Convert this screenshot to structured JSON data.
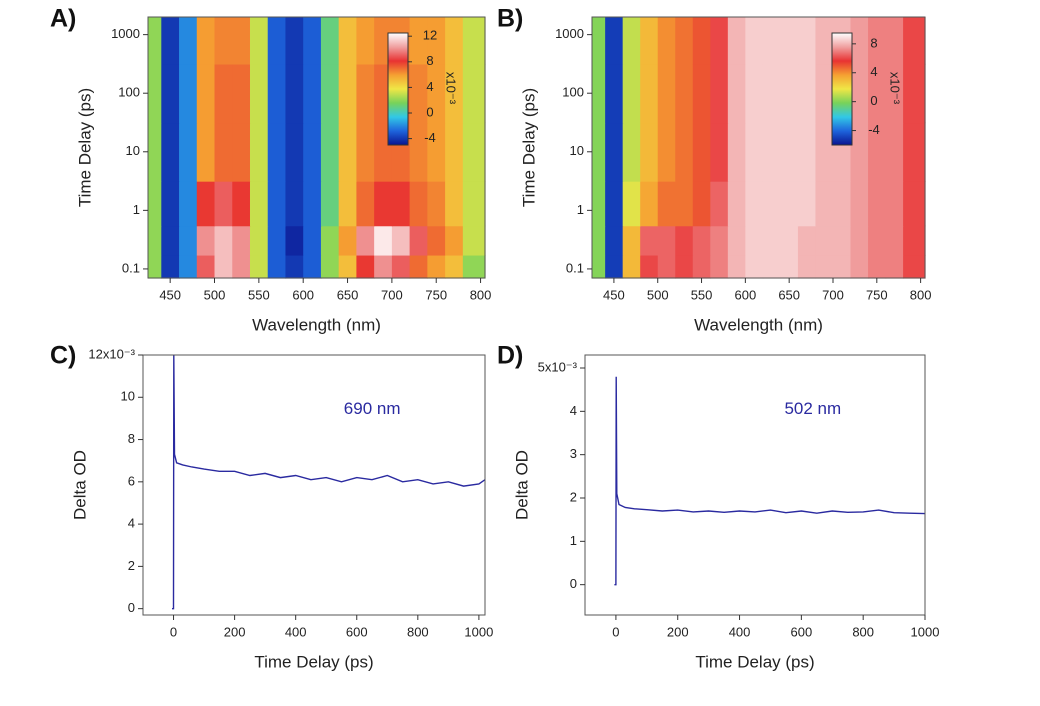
{
  "chart_data": [
    {
      "type": "heatmap",
      "label": "A)",
      "xlabel": "Wavelength (nm)",
      "ylabel": "Time Delay (ps)",
      "x": [
        430,
        450,
        470,
        490,
        510,
        530,
        550,
        570,
        590,
        610,
        630,
        650,
        670,
        690,
        710,
        730,
        750,
        770,
        790
      ],
      "y": [
        0.1,
        0.3,
        1,
        10,
        100,
        1000
      ],
      "z": [
        [
          2,
          -4,
          -2,
          9,
          11,
          10,
          3,
          -3,
          -4,
          -3,
          2,
          5,
          8,
          10,
          9,
          7,
          6,
          5,
          2
        ],
        [
          2,
          -4,
          -2,
          10,
          11,
          10,
          3,
          -3,
          -4.5,
          -3,
          2,
          6,
          10,
          12,
          11,
          9,
          7,
          6,
          3
        ],
        [
          2,
          -4,
          -2,
          8,
          9,
          8,
          3,
          -3,
          -4,
          -3,
          1,
          5,
          7,
          8,
          8,
          7,
          6.5,
          5,
          3
        ],
        [
          2,
          -4,
          -2,
          6,
          7,
          7,
          3,
          -3,
          -4,
          -3,
          1,
          5,
          6.5,
          7,
          7,
          6.5,
          6,
          5,
          3
        ],
        [
          2,
          -4,
          -2,
          6,
          7,
          7,
          3,
          -3,
          -4,
          -3,
          1,
          5,
          6.5,
          7,
          7,
          6.5,
          6,
          5,
          3
        ],
        [
          2,
          -4,
          -2,
          6,
          6.5,
          6.5,
          3,
          -3,
          -4,
          -3,
          1,
          5,
          6,
          6.5,
          6.5,
          6,
          6,
          5,
          3
        ]
      ],
      "xlim": [
        425,
        805
      ],
      "xticks": [
        450,
        500,
        550,
        600,
        650,
        700,
        750,
        800
      ],
      "ylim": [
        0.07,
        2000
      ],
      "ylog": true,
      "yticks": [
        0.1,
        1,
        10,
        100,
        1000
      ],
      "clim": [
        -5,
        12.5
      ],
      "cticks": [
        -4,
        0,
        4,
        8,
        12
      ],
      "colorbar_label": "x10⁻³",
      "colorscale": [
        "#0a1490",
        "#1e64dc",
        "#32c8e6",
        "#78d25a",
        "#f0e646",
        "#f5a032",
        "#e83232",
        "#f0a0a0",
        "#ffffff"
      ]
    },
    {
      "type": "heatmap",
      "label": "B)",
      "xlabel": "Wavelength (nm)",
      "ylabel": "Time Delay (ps)",
      "x": [
        430,
        450,
        470,
        490,
        510,
        530,
        550,
        570,
        590,
        610,
        630,
        650,
        670,
        690,
        710,
        730,
        750,
        770,
        790
      ],
      "y": [
        0.1,
        0.3,
        1,
        10,
        100,
        1000
      ],
      "z": [
        [
          0,
          -5,
          3,
          6,
          6.5,
          6,
          6.5,
          7,
          8,
          8.5,
          8.5,
          8.5,
          8,
          8,
          8,
          7.5,
          7,
          7,
          6
        ],
        [
          0,
          -5,
          3,
          6.5,
          6.5,
          6,
          6.5,
          7,
          8,
          8.5,
          8.5,
          8.5,
          8,
          8,
          8,
          7.5,
          7,
          7,
          6
        ],
        [
          0,
          -5,
          1.5,
          3.5,
          4.5,
          4.5,
          5,
          6.5,
          8,
          8.5,
          8.5,
          8.5,
          8.5,
          8,
          8,
          7.5,
          7,
          7,
          6
        ],
        [
          0,
          -5,
          1,
          3,
          4,
          4.5,
          5,
          6,
          8,
          8.5,
          8.5,
          8.5,
          8.5,
          8,
          8,
          7.5,
          7,
          7,
          6
        ],
        [
          0,
          -5,
          1,
          3,
          4,
          4.5,
          5,
          6,
          8,
          8.5,
          8.5,
          8.5,
          8.5,
          8,
          8,
          7.5,
          7,
          7,
          6
        ],
        [
          0,
          -5,
          1,
          3,
          4,
          4.5,
          5,
          6,
          8,
          8.5,
          8.5,
          8.5,
          8.5,
          8,
          8,
          7.5,
          7,
          7,
          6
        ]
      ],
      "xlim": [
        425,
        805
      ],
      "xticks": [
        450,
        500,
        550,
        600,
        650,
        700,
        750,
        800
      ],
      "ylim": [
        0.07,
        2000
      ],
      "ylog": true,
      "yticks": [
        0.1,
        1,
        10,
        100,
        1000
      ],
      "clim": [
        -6,
        9.5
      ],
      "cticks": [
        -4,
        0,
        4,
        8
      ],
      "colorbar_label": "x10⁻³",
      "colorscale": [
        "#0a1490",
        "#1e64dc",
        "#32c8e6",
        "#78d25a",
        "#f0e646",
        "#f5a032",
        "#e83232",
        "#f0a0a0",
        "#ffffff"
      ]
    },
    {
      "type": "line",
      "label": "C)",
      "xlabel": "Time Delay (ps)",
      "ylabel": "Delta OD",
      "annotation": "690 nm",
      "x": [
        -5,
        0,
        1,
        3,
        10,
        30,
        60,
        100,
        150,
        200,
        250,
        300,
        350,
        400,
        450,
        500,
        550,
        600,
        650,
        700,
        750,
        800,
        850,
        900,
        950,
        1000,
        1020
      ],
      "series": [
        {
          "color": "#2a2aa0",
          "values": [
            0,
            0,
            12,
            7.3,
            6.9,
            6.8,
            6.7,
            6.6,
            6.5,
            6.5,
            6.3,
            6.4,
            6.2,
            6.3,
            6.1,
            6.2,
            6.0,
            6.2,
            6.1,
            6.3,
            6.0,
            6.1,
            5.9,
            6.0,
            5.8,
            5.9,
            6.1
          ]
        }
      ],
      "xlim": [
        -100,
        1020
      ],
      "xticks": [
        0,
        200,
        400,
        600,
        800,
        1000
      ],
      "ylim": [
        -0.3,
        12
      ],
      "yticks": [
        0,
        2,
        4,
        6,
        8,
        10,
        {
          "value": 12,
          "label": "12x10⁻³"
        }
      ]
    },
    {
      "type": "line",
      "label": "D)",
      "xlabel": "Time Delay (ps)",
      "ylabel": "Delta OD",
      "annotation": "502 nm",
      "x": [
        -5,
        0,
        1,
        3,
        10,
        30,
        60,
        100,
        150,
        200,
        250,
        300,
        350,
        400,
        450,
        500,
        550,
        600,
        650,
        700,
        750,
        800,
        850,
        900,
        950,
        1000
      ],
      "series": [
        {
          "color": "#2a2aa0",
          "values": [
            0,
            0,
            4.8,
            2.1,
            1.85,
            1.78,
            1.75,
            1.73,
            1.7,
            1.72,
            1.68,
            1.7,
            1.67,
            1.7,
            1.68,
            1.72,
            1.66,
            1.7,
            1.65,
            1.7,
            1.67,
            1.68,
            1.72,
            1.66,
            1.65,
            1.64
          ]
        }
      ],
      "xlim": [
        -100,
        1000
      ],
      "xticks": [
        0,
        200,
        400,
        600,
        800,
        1000
      ],
      "ylim": [
        -0.7,
        5.3
      ],
      "yticks": [
        0,
        1,
        2,
        3,
        4,
        {
          "value": 5,
          "label": "5x10⁻³"
        }
      ]
    }
  ]
}
